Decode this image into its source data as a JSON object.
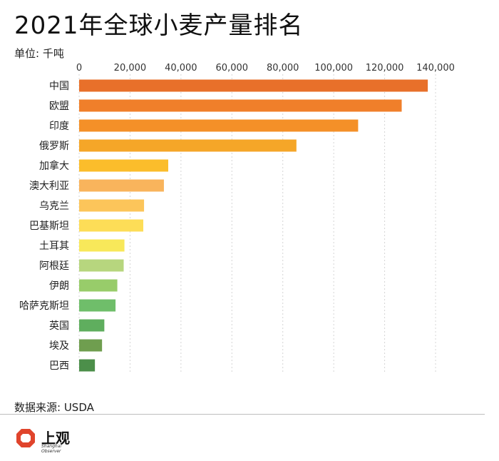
{
  "title": "2021年全球小麦产量排名",
  "unit_label": "单位: 千吨",
  "source": "数据来源: USDA",
  "logo": {
    "text": "上观",
    "subtext": "Shanghai Observer",
    "icon": "octagon-logo-icon",
    "color": "#e0442c"
  },
  "chart_data": {
    "type": "bar",
    "orientation": "horizontal",
    "categories": [
      "中国",
      "欧盟",
      "印度",
      "俄罗斯",
      "加拿大",
      "澳大利亚",
      "乌克兰",
      "巴基斯坦",
      "土耳其",
      "阿根廷",
      "伊朗",
      "哈萨克斯坦",
      "英国",
      "埃及",
      "巴西"
    ],
    "values": [
      136950,
      126700,
      109590,
      85350,
      35000,
      33300,
      25500,
      25200,
      17800,
      17500,
      15000,
      14300,
      9900,
      9000,
      6200
    ],
    "colors": [
      "#e8702a",
      "#f07f2a",
      "#f49028",
      "#f5a628",
      "#fbbd2b",
      "#f9b45c",
      "#fcc55a",
      "#fddd57",
      "#f8e85a",
      "#b7d67e",
      "#98cc6a",
      "#6fbe6a",
      "#5fae5e",
      "#6f9e4f",
      "#4c8f4a"
    ],
    "xlim": [
      0,
      140000
    ],
    "ticks": [
      0,
      20000,
      40000,
      60000,
      80000,
      100000,
      120000,
      140000
    ],
    "tick_labels": [
      "0",
      "20,000",
      "40,000",
      "60,000",
      "80,000",
      "100,000",
      "120,000",
      "140,000"
    ],
    "grid": true,
    "unit": "千吨"
  }
}
